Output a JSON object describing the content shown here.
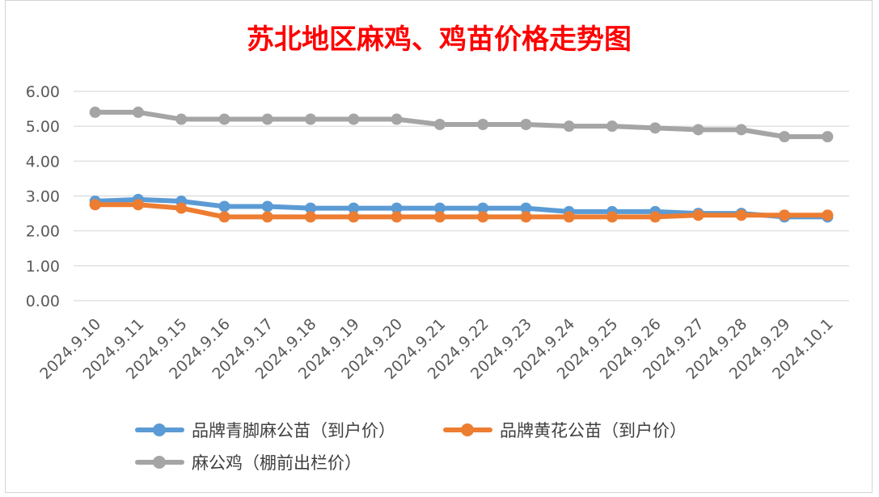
{
  "chart_data": {
    "type": "line",
    "title": "苏北地区麻鸡、鸡苗价格走势图",
    "xlabel": "",
    "ylabel": "",
    "ylim": [
      0,
      6
    ],
    "y_ticks": [
      "0.00",
      "1.00",
      "2.00",
      "3.00",
      "4.00",
      "5.00",
      "6.00"
    ],
    "grid": "horizontal",
    "legend_position": "bottom",
    "categories": [
      "2024.9.10",
      "2024.9.11",
      "2024.9.15",
      "2024.9.16",
      "2024.9.17",
      "2024.9.18",
      "2024.9.19",
      "2024.9.20",
      "2024.9.21",
      "2024.9.22",
      "2024.9.23",
      "2024.9.24",
      "2024.9.25",
      "2024.9.26",
      "2024.9.27",
      "2024.9.28",
      "2024.9.29",
      "2024.10.1"
    ],
    "series": [
      {
        "name": "品牌青脚麻公苗（到户价）",
        "color": "#5b9bd5",
        "values": [
          2.85,
          2.9,
          2.85,
          2.7,
          2.7,
          2.65,
          2.65,
          2.65,
          2.65,
          2.65,
          2.65,
          2.55,
          2.55,
          2.55,
          2.5,
          2.5,
          2.4,
          2.4
        ]
      },
      {
        "name": "品牌黄花公苗（到户价）",
        "color": "#ed7d31",
        "values": [
          2.75,
          2.75,
          2.65,
          2.4,
          2.4,
          2.4,
          2.4,
          2.4,
          2.4,
          2.4,
          2.4,
          2.4,
          2.4,
          2.4,
          2.45,
          2.45,
          2.45,
          2.45
        ]
      },
      {
        "name": "麻公鸡（棚前出栏价）",
        "color": "#a5a5a5",
        "values": [
          5.4,
          5.4,
          5.2,
          5.2,
          5.2,
          5.2,
          5.2,
          5.2,
          5.05,
          5.05,
          5.05,
          5.0,
          5.0,
          4.95,
          4.9,
          4.9,
          4.7,
          4.7
        ]
      }
    ]
  }
}
